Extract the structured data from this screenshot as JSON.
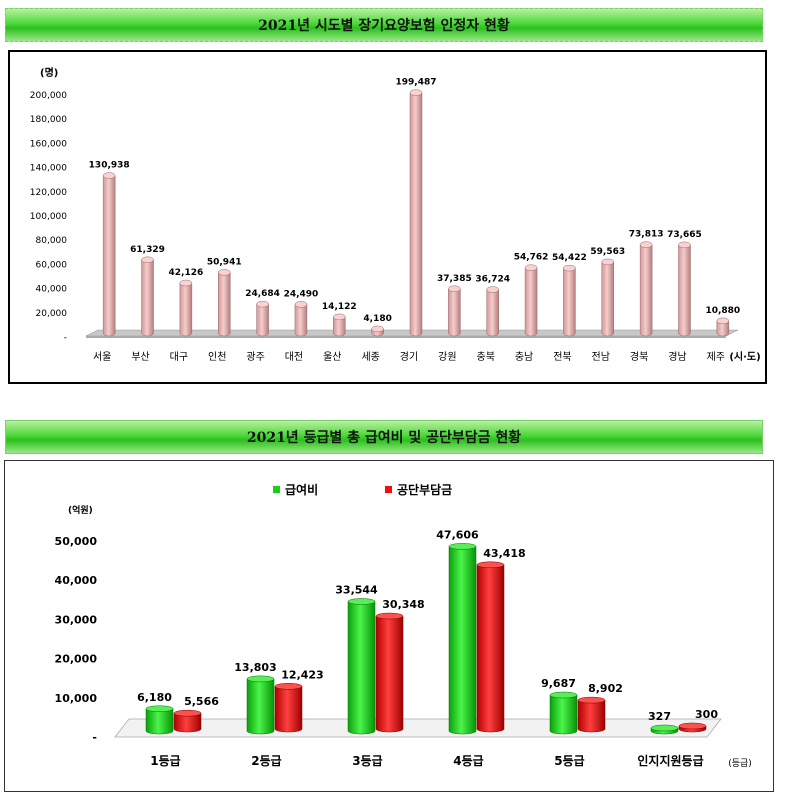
{
  "chart1": {
    "title": "2021년 시도별 장기요양보험 인정자 현황",
    "chart_data": {
      "type": "bar",
      "categories": [
        "서울",
        "부산",
        "대구",
        "인천",
        "광주",
        "대전",
        "울산",
        "세종",
        "경기",
        "강원",
        "충북",
        "충남",
        "전북",
        "전남",
        "경북",
        "경남",
        "제주"
      ],
      "values": [
        130938,
        61329,
        42126,
        50941,
        24684,
        24490,
        14122,
        4180,
        199487,
        37385,
        36724,
        54762,
        54422,
        59563,
        73813,
        73665,
        10880
      ],
      "value_labels": [
        "130,938",
        "61,329",
        "42,126",
        "50,941",
        "24,684",
        "24,490",
        "14,122",
        "4,180",
        "199,487",
        "37,385",
        "36,724",
        "54,762",
        "54,422",
        "59,563",
        "73,813",
        "73,665",
        "10,880"
      ],
      "ylabel": "(명)",
      "xlabel": "(시·도)",
      "ylim": [
        0,
        200000
      ],
      "yticks": [
        0,
        20000,
        40000,
        60000,
        80000,
        100000,
        120000,
        140000,
        160000,
        180000,
        200000
      ],
      "ytick_labels": [
        "-",
        "20,000",
        "40,000",
        "60,000",
        "80,000",
        "100,000",
        "120,000",
        "140,000",
        "160,000",
        "180,000",
        "200,000"
      ],
      "colors": {
        "bar": "#e8b2b2",
        "bar_dark": "#b27c7c",
        "floor": "#c8c8c8"
      }
    }
  },
  "chart2": {
    "title": "2021년 등급별 총 급여비 및 공단부담금 현황",
    "chart_data": {
      "type": "bar",
      "categories": [
        "1등급",
        "2등급",
        "3등급",
        "4등급",
        "5등급",
        "인지지원등급"
      ],
      "series": [
        {
          "name": "급여비",
          "values": [
            6180,
            13803,
            33544,
            47606,
            9687,
            327
          ],
          "labels": [
            "6,180",
            "13,803",
            "33,544",
            "47,606",
            "9,687",
            "327"
          ],
          "color": "#18d018"
        },
        {
          "name": "공단부담금",
          "values": [
            5566,
            12423,
            30348,
            43418,
            8902,
            300
          ],
          "labels": [
            "5,566",
            "12,423",
            "30,348",
            "43,418",
            "8,902",
            "300"
          ],
          "color": "#ee1010"
        }
      ],
      "ylabel": "(억원)",
      "xlabel": "(등급)",
      "ylim": [
        0,
        50000
      ],
      "yticks": [
        0,
        10000,
        20000,
        30000,
        40000,
        50000
      ],
      "ytick_labels": [
        "-",
        "10,000",
        "20,000",
        "30,000",
        "40,000",
        "50,000"
      ],
      "legend": "top-center"
    }
  }
}
